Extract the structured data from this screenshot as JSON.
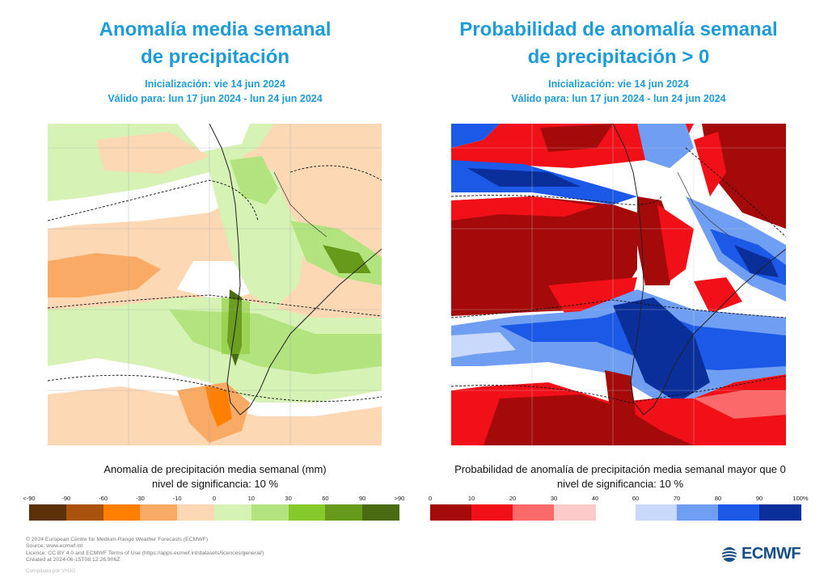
{
  "left_panel": {
    "title_line1": "Anomalía media semanal",
    "title_line2": "de precipitación",
    "init": "Inicialización: vie 14 jun 2024",
    "valid": "Válido para: lun 17 jun 2024 - lun 24 jun 2024",
    "caption_line1": "Anomalía de precipitación media semanal (mm)",
    "caption_line2": "nivel de significancia: 10 %",
    "colorbar": {
      "ticks": [
        "<-90",
        "-90",
        "-60",
        "-30",
        "-10",
        "0",
        "10",
        "30",
        "60",
        "90",
        ">90"
      ],
      "colors": [
        "#5c3008",
        "#a8520d",
        "#ff7f00",
        "#f9ab66",
        "#fdd8b5",
        "#d6f2b4",
        "#b3e37e",
        "#86c92d",
        "#679a1b",
        "#4b6b12"
      ]
    }
  },
  "right_panel": {
    "title_line1": "Probabilidad de anomalía semanal",
    "title_line2": "de precipitación > 0",
    "init": "Inicialización: vie 14 jun 2024",
    "valid": "Válido para: lun 17 jun 2024 - lun 24 jun 2024",
    "caption_line1": "Probabilidad de anomalía de precipitación media semanal mayor que 0",
    "caption_line2": "nivel de significancia: 10 %",
    "colorbar": {
      "ticks_low": [
        "0",
        "10",
        "20",
        "30",
        "40"
      ],
      "ticks_high": [
        "60",
        "70",
        "80",
        "90",
        "100%"
      ],
      "colors_low": [
        "#a50a0a",
        "#f21018",
        "#fb6a6a",
        "#fdcaca"
      ],
      "colors_high": [
        "#c8d9fb",
        "#6f9ef2",
        "#1c59e6",
        "#0a2f9a"
      ]
    }
  },
  "footer": {
    "lines": [
      "© 2024 European Centre for Medium-Range Weather Forecasts (ECMWF)",
      "Source: www.ecmwf.int",
      "Licence: CC BY 4.0 and ECMWF Terms of Use (https://apps.ecmwf.int/datasets/licences/general/)",
      "Created at 2024-06-15T08:12:26.906Z"
    ],
    "compiled": "Compilado por VHJG"
  },
  "logo": {
    "text": "ECMWF",
    "color": "#174e86"
  },
  "colors": {
    "title": "#1f9bd7"
  }
}
